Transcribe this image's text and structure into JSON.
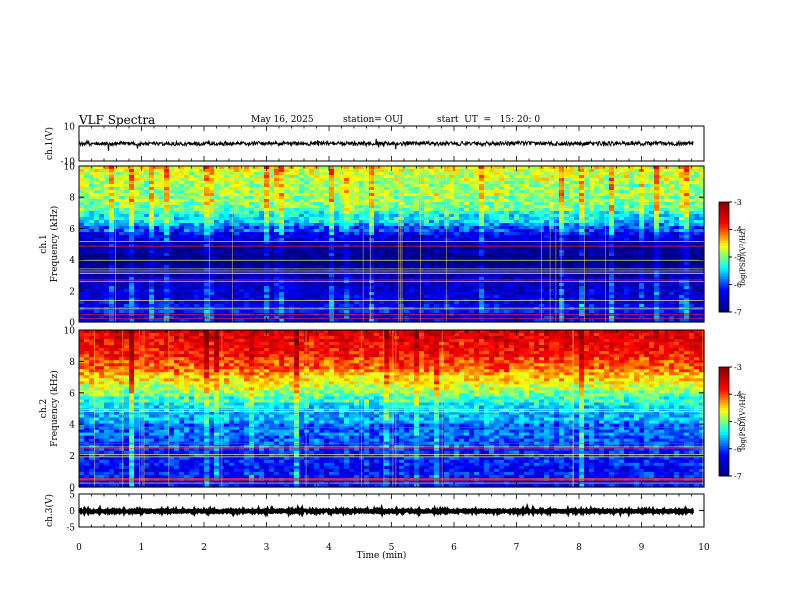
{
  "header": {
    "title": "VLF Spectra",
    "date": "May 16, 2025",
    "station": "station= OUJ",
    "start_ut": "start  UT  =   15: 20: 0"
  },
  "chart_data": [
    {
      "type": "line",
      "name": "ch1-waveform",
      "ylabel": "ch.1(V)",
      "ylim": [
        -10,
        10
      ],
      "yticks": [
        "10",
        "-10"
      ],
      "xlim": [
        0,
        10
      ],
      "x_extent_min": [
        0,
        9.83
      ],
      "baseline_v": 0,
      "noise_amplitude_v": 1.2
    },
    {
      "type": "heatmap",
      "name": "ch1-spectrogram",
      "ylabel": "ch.1\nFrequency  (kHz)",
      "ylabel_lines": [
        "ch.1",
        "Frequency  (kHz)"
      ],
      "ylim": [
        0,
        10
      ],
      "yticks": [
        "0",
        "2",
        "4",
        "6",
        "8",
        "10"
      ],
      "xlim": [
        0,
        10
      ],
      "colorbar": {
        "label": "log(PSD)(V²/Hz)",
        "range": [
          -7,
          -3
        ],
        "ticks": [
          "-3",
          "-4",
          "-5",
          "-6",
          "-7"
        ]
      },
      "level_profile": [
        {
          "f_khz": 0.0,
          "log_psd": -6.2
        },
        {
          "f_khz": 1.0,
          "log_psd": -6.4
        },
        {
          "f_khz": 2.0,
          "log_psd": -6.5
        },
        {
          "f_khz": 3.0,
          "log_psd": -6.8
        },
        {
          "f_khz": 4.0,
          "log_psd": -7.0
        },
        {
          "f_khz": 5.0,
          "log_psd": -6.8
        },
        {
          "f_khz": 6.0,
          "log_psd": -5.9
        },
        {
          "f_khz": 7.0,
          "log_psd": -5.2
        },
        {
          "f_khz": 8.0,
          "log_psd": -4.9
        },
        {
          "f_khz": 10.0,
          "log_psd": -4.7
        }
      ]
    },
    {
      "type": "heatmap",
      "name": "ch2-spectrogram",
      "ylabel": "ch.2\nFrequency  (kHz)",
      "ylabel_lines": [
        "ch.2",
        "Frequency  (kHz)"
      ],
      "ylim": [
        0,
        10
      ],
      "yticks": [
        "0",
        "2",
        "4",
        "6",
        "8",
        "10"
      ],
      "xlim": [
        0,
        10
      ],
      "colorbar": {
        "label": "log(PSD)(V²/Hz)",
        "range": [
          -7,
          -3
        ],
        "ticks": [
          "-3",
          "-4",
          "-5",
          "-6",
          "-7"
        ]
      },
      "level_profile": [
        {
          "f_khz": 0.0,
          "log_psd": -6.3
        },
        {
          "f_khz": 1.0,
          "log_psd": -6.2
        },
        {
          "f_khz": 2.0,
          "log_psd": -6.1
        },
        {
          "f_khz": 3.0,
          "log_psd": -6.0
        },
        {
          "f_khz": 4.0,
          "log_psd": -5.8
        },
        {
          "f_khz": 5.0,
          "log_psd": -5.5
        },
        {
          "f_khz": 6.0,
          "log_psd": -5.0
        },
        {
          "f_khz": 7.0,
          "log_psd": -4.5
        },
        {
          "f_khz": 8.0,
          "log_psd": -4.0
        },
        {
          "f_khz": 10.0,
          "log_psd": -3.6
        }
      ]
    },
    {
      "type": "line",
      "name": "ch3-waveform",
      "ylabel": "ch.3(V)",
      "ylim": [
        -5,
        5
      ],
      "yticks": [
        "5",
        "0",
        "-5"
      ],
      "xlim": [
        0,
        10
      ],
      "x_extent_min": [
        0,
        9.83
      ],
      "baseline_v": -0.2,
      "noise_amplitude_v": 0.3,
      "xlabel": "Time  (min)",
      "xticks": [
        "0",
        "1",
        "2",
        "3",
        "4",
        "5",
        "6",
        "7",
        "8",
        "9",
        "10"
      ]
    }
  ],
  "colors": {
    "jet": [
      "#000080",
      "#0000ff",
      "#00ffff",
      "#ffff00",
      "#ff0000",
      "#800000"
    ],
    "trace": "#000000",
    "background": "#ffffff"
  }
}
